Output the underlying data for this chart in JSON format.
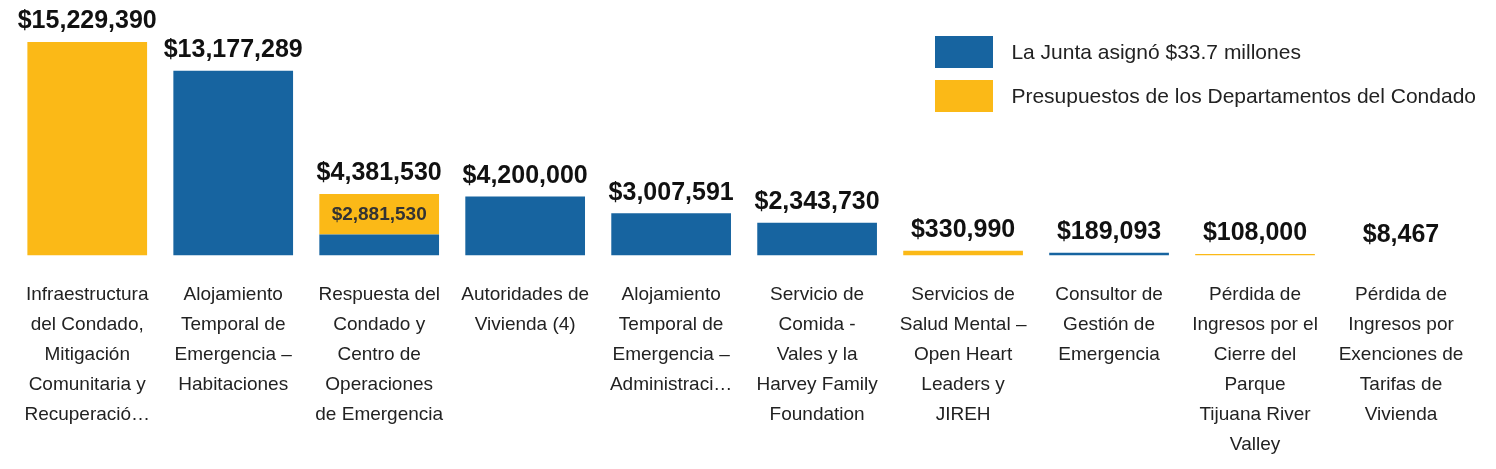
{
  "chart_data": {
    "type": "bar",
    "stacked": true,
    "tick_labels": "x",
    "legend": "top right",
    "grid": false,
    "categories": [
      "Infraestructura del Condado, Mitigación Comunitaria y Recuperació…",
      "Alojamiento Temporal de Emergencia – Habitaciones",
      "Respuesta del Condado y Centro de Operaciones de Emergencia",
      "Autoridades de Vivienda (4)",
      "Alojamiento Temporal de Emergencia – Administraci…",
      "Servicio de Comida - Vales y la Harvey Family Foundation",
      "Servicios de Salud Mental – Open Heart Leaders y JIREH",
      "Consultor de Gestión de Emergencia",
      "Pérdida de Ingresos por el Cierre del Parque Tijuana River Valley",
      "Pérdida de Ingresos por Exenciones de Tarifas de Vivienda"
    ],
    "series": [
      {
        "name": "La Junta asignó $33.7 millones",
        "color": "#1764a0",
        "values": [
          null,
          13177289,
          1500000,
          4200000,
          3007591,
          2343730,
          null,
          189093,
          null,
          8467
        ]
      },
      {
        "name": "Presupuestos de los Departamentos del Condado",
        "color": "#fbb917",
        "values": [
          15229390,
          null,
          2881530,
          null,
          null,
          null,
          330990,
          null,
          108000,
          null
        ],
        "value_labels": [
          null,
          null,
          "$2,881,530",
          null,
          null,
          null,
          null,
          null,
          null,
          null
        ]
      }
    ],
    "totals": [
      "$15,229,390",
      "$13,177,289",
      "$4,381,530",
      "$4,200,000",
      "$3,007,591",
      "$2,343,730",
      "$330,990",
      "$189,093",
      "$108,000",
      "$8,467"
    ]
  }
}
